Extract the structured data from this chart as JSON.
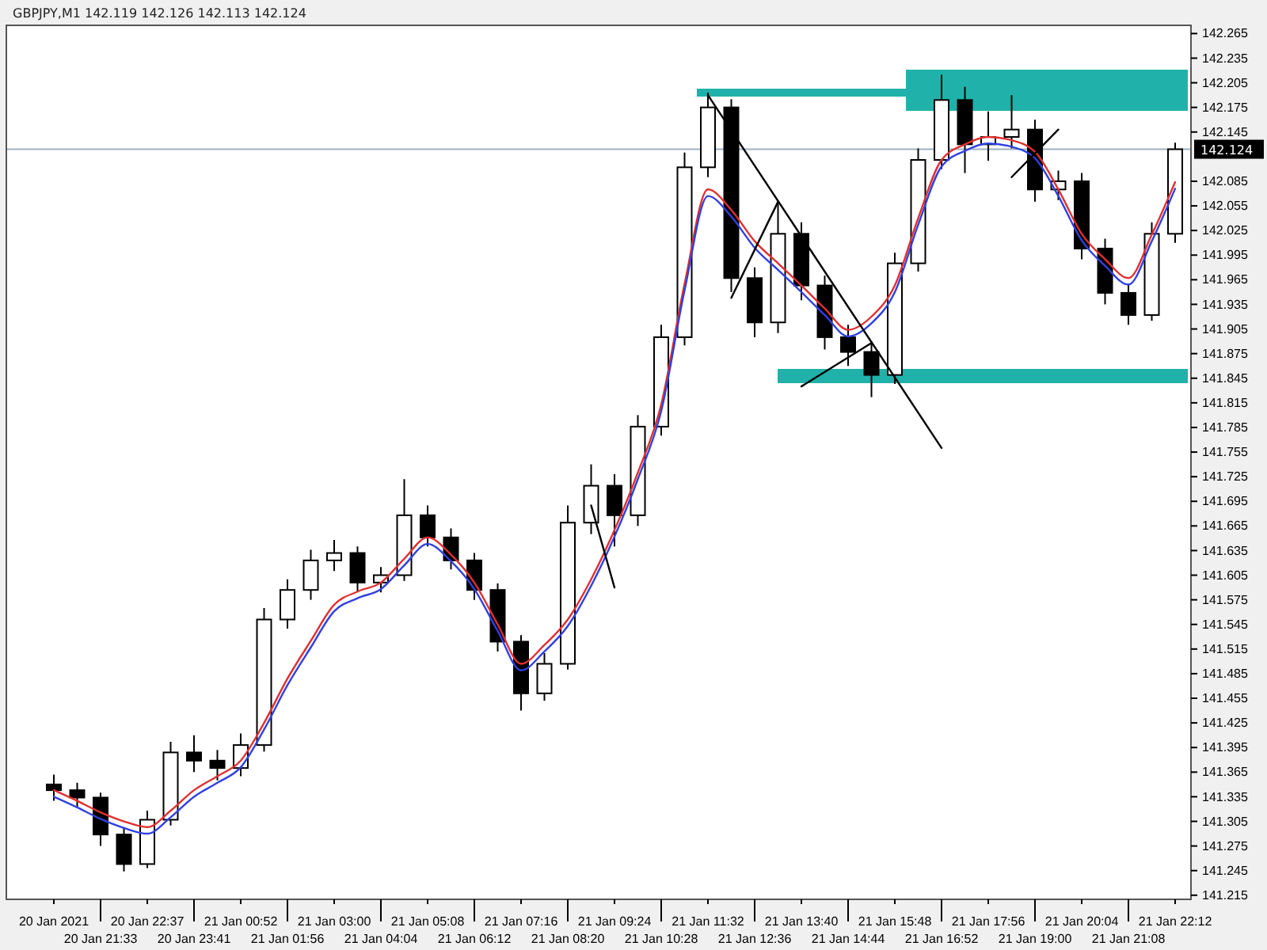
{
  "chart_data": {
    "type": "candlestick",
    "title": "GBPJPY,M1 142.119 142.126 142.113 142.124",
    "categories": [
      "20 Jan 2021",
      null,
      "20 Jan 21:33",
      null,
      "20 Jan 22:37",
      null,
      "20 Jan 23:41",
      null,
      "21 Jan 00:52",
      null,
      "21 Jan 01:56",
      null,
      "21 Jan 03:00",
      null,
      "21 Jan 04:04",
      null,
      "21 Jan 05:08",
      null,
      "21 Jan 06:12",
      null,
      "21 Jan 07:16",
      null,
      "21 Jan 08:20",
      null,
      "21 Jan 09:24",
      null,
      "21 Jan 10:28",
      null,
      "21 Jan 11:32",
      null,
      "21 Jan 12:36",
      null,
      "21 Jan 13:40",
      null,
      "21 Jan 14:44",
      null,
      "21 Jan 15:48",
      null,
      "21 Jan 16:52",
      null,
      "21 Jan 17:56",
      null,
      "21 Jan 19:00",
      null,
      "21 Jan 20:04",
      null,
      "21 Jan 21:08",
      null,
      "21 Jan 22:12"
    ],
    "ohlc": [
      [
        141.35,
        141.362,
        141.33,
        141.343
      ],
      [
        141.343,
        141.352,
        141.322,
        141.334
      ],
      [
        141.334,
        141.34,
        141.275,
        141.289
      ],
      [
        141.289,
        141.298,
        141.244,
        141.253
      ],
      [
        141.253,
        141.318,
        141.248,
        141.307
      ],
      [
        141.307,
        141.402,
        141.3,
        141.389
      ],
      [
        141.389,
        141.41,
        141.365,
        141.379
      ],
      [
        141.379,
        141.392,
        141.355,
        141.37
      ],
      [
        141.37,
        141.412,
        141.36,
        141.398
      ],
      [
        141.398,
        141.565,
        141.39,
        141.551
      ],
      [
        141.551,
        141.6,
        141.54,
        141.587
      ],
      [
        141.587,
        141.636,
        141.575,
        141.623
      ],
      [
        141.623,
        141.648,
        141.61,
        141.632
      ],
      [
        141.632,
        141.64,
        141.585,
        141.596
      ],
      [
        141.596,
        141.615,
        141.584,
        141.605
      ],
      [
        141.605,
        141.722,
        141.598,
        141.678
      ],
      [
        141.678,
        141.69,
        141.64,
        141.651
      ],
      [
        141.651,
        141.662,
        141.612,
        141.623
      ],
      [
        141.623,
        141.632,
        141.575,
        141.587
      ],
      [
        141.587,
        141.595,
        141.512,
        141.524
      ],
      [
        141.524,
        141.532,
        141.44,
        141.461
      ],
      [
        141.461,
        141.51,
        141.452,
        141.497
      ],
      [
        141.497,
        141.69,
        141.49,
        141.669
      ],
      [
        141.669,
        141.74,
        141.655,
        141.714
      ],
      [
        141.714,
        141.728,
        141.64,
        141.678
      ],
      [
        141.678,
        141.8,
        141.665,
        141.786
      ],
      [
        141.786,
        141.91,
        141.775,
        141.895
      ],
      [
        141.895,
        142.12,
        141.885,
        142.102
      ],
      [
        142.102,
        142.193,
        142.09,
        142.175
      ],
      [
        142.175,
        142.185,
        141.95,
        141.967
      ],
      [
        141.967,
        141.98,
        141.895,
        141.913
      ],
      [
        141.913,
        142.06,
        141.9,
        142.021
      ],
      [
        142.021,
        142.035,
        141.94,
        141.958
      ],
      [
        141.958,
        141.97,
        141.88,
        141.895
      ],
      [
        141.895,
        141.91,
        141.86,
        141.877
      ],
      [
        141.877,
        141.89,
        141.822,
        141.849
      ],
      [
        141.849,
        141.998,
        141.838,
        141.985
      ],
      [
        141.985,
        142.125,
        141.975,
        142.111
      ],
      [
        142.111,
        142.215,
        142.1,
        142.184
      ],
      [
        142.184,
        142.2,
        142.095,
        142.13
      ],
      [
        142.13,
        142.17,
        142.11,
        142.139
      ],
      [
        142.139,
        142.19,
        142.125,
        142.148
      ],
      [
        142.148,
        142.16,
        142.06,
        142.075
      ],
      [
        142.075,
        142.098,
        142.062,
        142.085
      ],
      [
        142.085,
        142.095,
        141.99,
        142.003
      ],
      [
        142.003,
        142.015,
        141.935,
        141.949
      ],
      [
        141.949,
        141.96,
        141.91,
        141.922
      ],
      [
        141.922,
        142.035,
        141.915,
        142.021
      ],
      [
        142.021,
        142.132,
        142.01,
        142.124
      ]
    ],
    "series": [
      {
        "type": "line",
        "color": "#e03030",
        "values": [
          141.343,
          141.33,
          141.316,
          141.305,
          141.298,
          141.318,
          141.343,
          141.36,
          141.379,
          141.425,
          141.479,
          141.525,
          141.569,
          141.585,
          141.596,
          141.625,
          141.651,
          141.63,
          141.596,
          141.545,
          141.497,
          141.52,
          141.551,
          141.6,
          141.66,
          141.73,
          141.813,
          141.96,
          142.075,
          142.05,
          142.012,
          141.985,
          141.958,
          141.93,
          141.904,
          141.92,
          141.958,
          142.04,
          142.111,
          142.13,
          142.139,
          142.135,
          142.121,
          142.075,
          142.021,
          141.99,
          141.967,
          142.02,
          142.084
        ]
      },
      {
        "type": "line",
        "color": "#3040e0",
        "values": [
          141.335,
          141.322,
          141.308,
          141.297,
          141.29,
          141.31,
          141.335,
          141.352,
          141.371,
          141.417,
          141.471,
          141.517,
          141.561,
          141.577,
          141.588,
          141.617,
          141.643,
          141.622,
          141.588,
          141.537,
          141.489,
          141.512,
          141.543,
          141.592,
          141.652,
          141.722,
          141.805,
          141.952,
          142.067,
          142.042,
          142.004,
          141.977,
          141.95,
          141.922,
          141.896,
          141.912,
          141.95,
          142.032,
          142.103,
          142.122,
          142.131,
          142.127,
          142.113,
          142.067,
          142.013,
          141.982,
          141.959,
          142.012,
          142.076
        ]
      },
      {
        "type": "line",
        "color": "#000000",
        "values": [
          null,
          null,
          null,
          null,
          null,
          null,
          null,
          null,
          null,
          null,
          null,
          null,
          null,
          null,
          null,
          null,
          null,
          null,
          null,
          null,
          null,
          null,
          null,
          null,
          null,
          null,
          null,
          null,
          142.19,
          null,
          null,
          null,
          null,
          null,
          null,
          null,
          null,
          null,
          141.76,
          null,
          null,
          null,
          null,
          null,
          null,
          null,
          null,
          null,
          null
        ]
      },
      {
        "type": "line",
        "color": "#000000",
        "values": [
          null,
          null,
          null,
          null,
          null,
          null,
          null,
          null,
          null,
          null,
          null,
          null,
          null,
          null,
          null,
          null,
          null,
          null,
          null,
          null,
          null,
          null,
          null,
          null,
          null,
          null,
          null,
          null,
          null,
          141.943,
          null,
          142.06,
          null,
          null,
          null,
          null,
          null,
          null,
          null,
          null,
          null,
          null,
          null,
          null,
          null,
          null,
          null,
          null,
          null
        ]
      },
      {
        "type": "line",
        "color": "#000000",
        "values": [
          null,
          null,
          null,
          null,
          null,
          null,
          null,
          null,
          null,
          null,
          null,
          null,
          null,
          null,
          null,
          null,
          null,
          null,
          null,
          null,
          null,
          null,
          null,
          141.69,
          141.59,
          null,
          null,
          null,
          null,
          null,
          null,
          null,
          null,
          null,
          null,
          null,
          null,
          null,
          null,
          null,
          null,
          null,
          null,
          null,
          null,
          null,
          null,
          null,
          null
        ]
      },
      {
        "type": "line",
        "color": "#000000",
        "values": [
          null,
          null,
          null,
          null,
          null,
          null,
          null,
          null,
          null,
          null,
          null,
          null,
          null,
          null,
          null,
          null,
          null,
          null,
          null,
          null,
          null,
          null,
          null,
          null,
          null,
          null,
          null,
          null,
          null,
          null,
          null,
          null,
          141.835,
          null,
          null,
          141.888,
          null,
          null,
          null,
          null,
          null,
          null,
          null,
          null,
          null,
          null,
          null,
          null,
          null
        ]
      },
      {
        "type": "line",
        "color": "#000000",
        "values": [
          null,
          null,
          null,
          null,
          null,
          null,
          null,
          null,
          null,
          null,
          null,
          null,
          null,
          null,
          null,
          null,
          null,
          null,
          null,
          null,
          null,
          null,
          null,
          null,
          null,
          null,
          null,
          null,
          null,
          null,
          null,
          null,
          null,
          null,
          null,
          null,
          null,
          null,
          null,
          null,
          null,
          142.09,
          null,
          142.148,
          null,
          null,
          null,
          null,
          null
        ]
      }
    ],
    "ref_lines": [
      {
        "axis": "y",
        "value": 142.124,
        "label": "142.124",
        "color": "#a0b0c0"
      }
    ],
    "ylim": [
      141.21,
      142.275
    ],
    "yticks": [
      141.215,
      141.245,
      141.275,
      141.305,
      141.335,
      141.365,
      141.395,
      141.425,
      141.455,
      141.485,
      141.515,
      141.545,
      141.575,
      141.605,
      141.635,
      141.665,
      141.695,
      141.725,
      141.755,
      141.785,
      141.815,
      141.845,
      141.875,
      141.905,
      141.935,
      141.965,
      141.995,
      142.025,
      142.055,
      142.085,
      142.145,
      142.175,
      142.205,
      142.235,
      142.265
    ]
  }
}
